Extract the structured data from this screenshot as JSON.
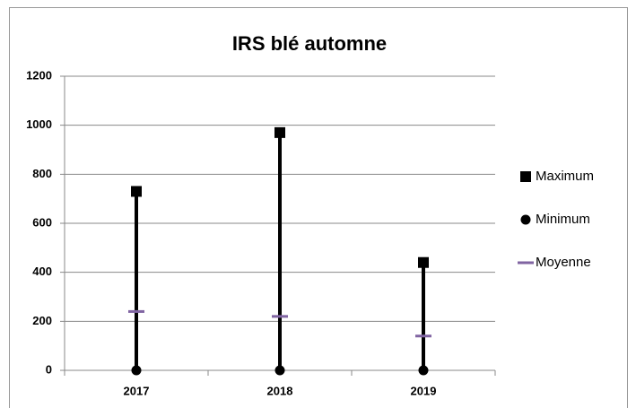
{
  "chart_data": {
    "type": "high-low",
    "title": "IRS blé automne",
    "categories": [
      "2017",
      "2018",
      "2019"
    ],
    "series": [
      {
        "name": "Maximum",
        "color": "#000000",
        "marker": "square",
        "values": [
          730,
          970,
          440
        ]
      },
      {
        "name": "Minimum",
        "color": "#000000",
        "marker": "circle",
        "values": [
          0,
          0,
          0
        ]
      },
      {
        "name": "Moyenne",
        "color": "#8064a2",
        "marker": "dash",
        "values": [
          240,
          220,
          140
        ]
      }
    ],
    "ylim": [
      0,
      1200
    ],
    "yticks": [
      0,
      200,
      400,
      600,
      800,
      1000,
      1200
    ],
    "grid": true,
    "legend": "right"
  }
}
